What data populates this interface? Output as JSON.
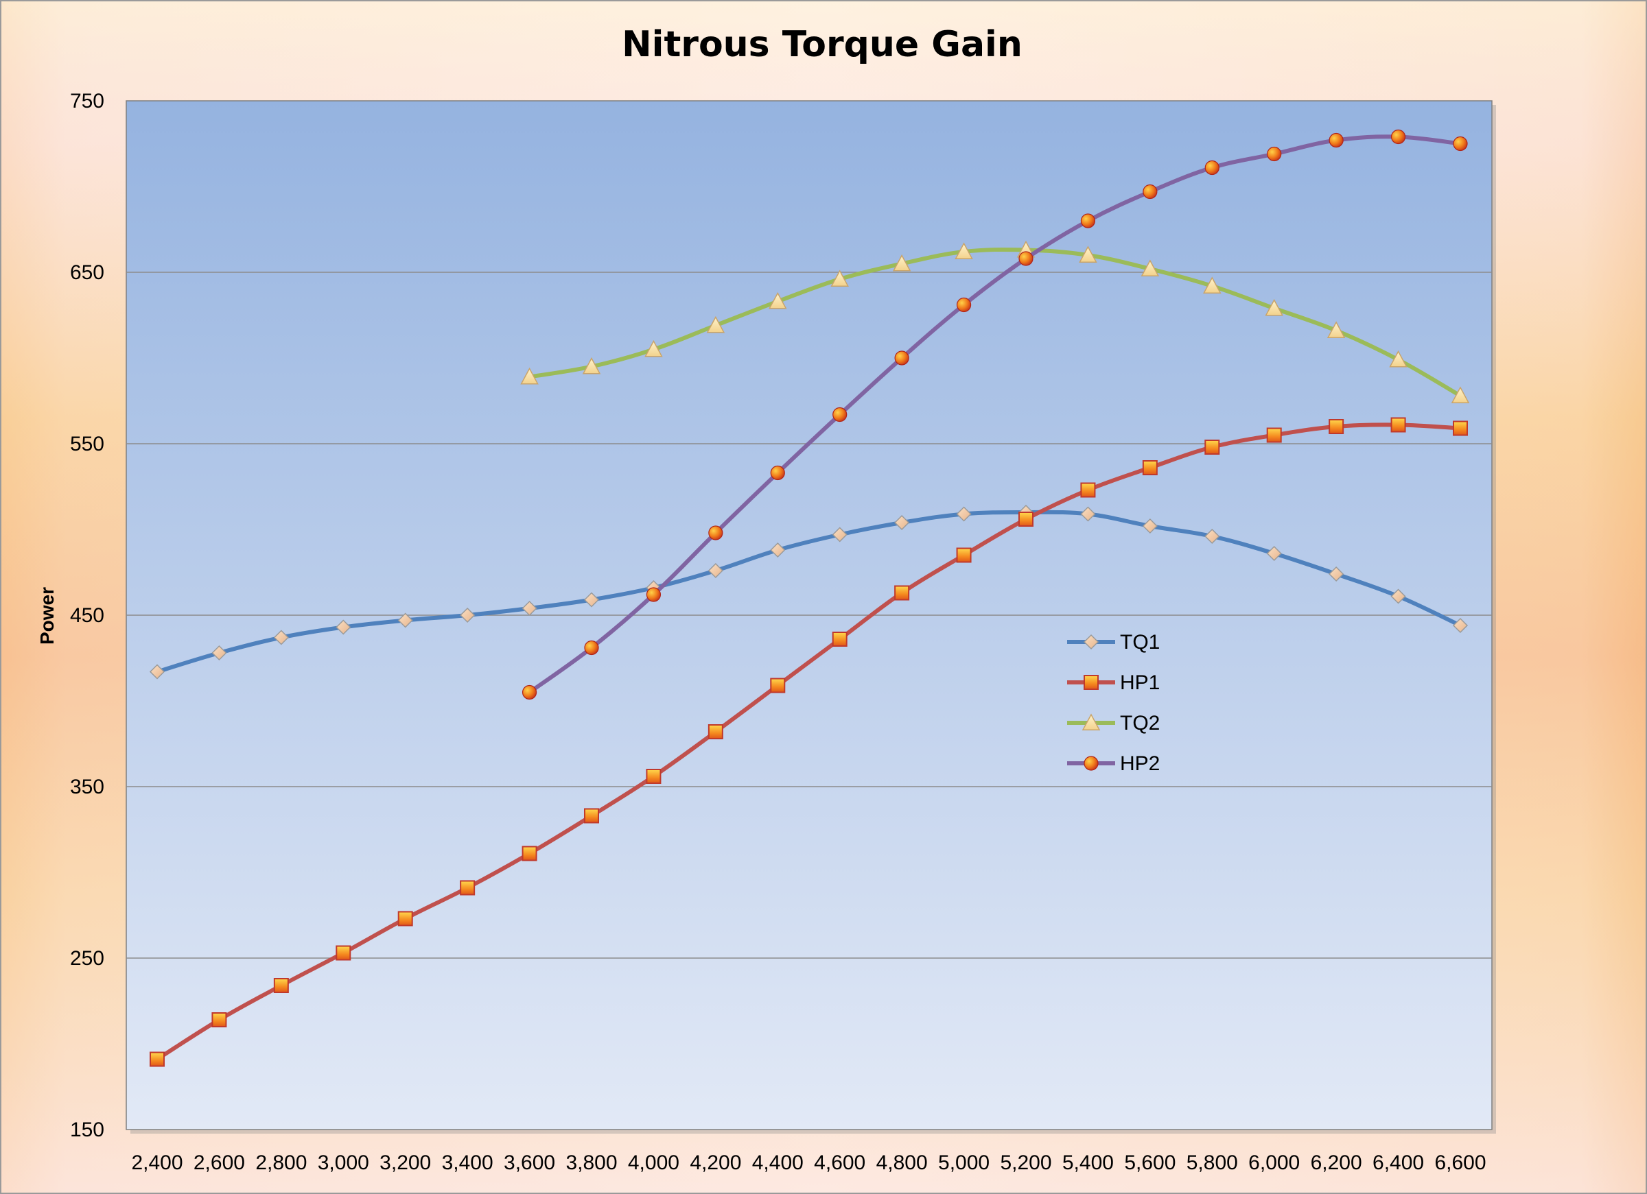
{
  "chart_data": {
    "type": "line",
    "title": "Nitrous Torque Gain",
    "xlabel": "",
    "ylabel": "Power",
    "ylim": [
      150,
      750
    ],
    "yticks": [
      150,
      250,
      350,
      450,
      550,
      650,
      750
    ],
    "categories": [
      "2,400",
      "2,600",
      "2,800",
      "3,000",
      "3,200",
      "3,400",
      "3,600",
      "3,800",
      "4,000",
      "4,200",
      "4,400",
      "4,600",
      "4,800",
      "5,000",
      "5,200",
      "5,400",
      "5,600",
      "5,800",
      "6,000",
      "6,200",
      "6,400",
      "6,600"
    ],
    "grid": true,
    "legend_position": "right-center",
    "series": [
      {
        "name": "TQ1",
        "color": "#4f81bd",
        "marker": "diamond",
        "values": [
          417,
          428,
          437,
          443,
          447,
          450,
          454,
          459,
          466,
          476,
          488,
          497,
          504,
          509,
          510,
          509,
          502,
          496,
          486,
          474,
          461,
          444
        ]
      },
      {
        "name": "HP1",
        "color": "#c0504d",
        "marker": "square",
        "values": [
          191,
          214,
          234,
          253,
          273,
          291,
          311,
          333,
          356,
          382,
          409,
          436,
          463,
          485,
          506,
          523,
          536,
          548,
          555,
          560,
          561,
          559
        ]
      },
      {
        "name": "TQ2",
        "color": "#9bbb59",
        "marker": "triangle",
        "values": [
          null,
          null,
          null,
          null,
          null,
          null,
          589,
          595,
          605,
          619,
          633,
          646,
          655,
          662,
          663,
          660,
          652,
          642,
          629,
          616,
          599,
          578
        ]
      },
      {
        "name": "HP2",
        "color": "#8064a2",
        "marker": "circle",
        "values": [
          null,
          null,
          null,
          null,
          null,
          null,
          405,
          431,
          462,
          498,
          533,
          567,
          600,
          631,
          658,
          680,
          697,
          711,
          719,
          727,
          729,
          725
        ]
      }
    ]
  },
  "colors": {
    "plot_top": "#95b3e0",
    "plot_bottom": "#e2e9f6",
    "gridline": "#8c8c8c"
  }
}
